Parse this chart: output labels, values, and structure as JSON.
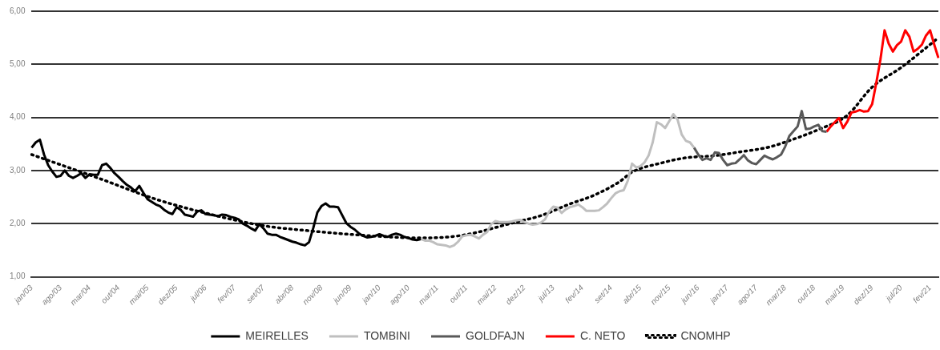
{
  "chart_data": {
    "type": "line",
    "categories": [
      "jan/03",
      null,
      null,
      null,
      null,
      null,
      null,
      "ago/03",
      null,
      null,
      null,
      null,
      null,
      null,
      "mar/04",
      null,
      null,
      null,
      null,
      null,
      null,
      "out/04",
      null,
      null,
      null,
      null,
      null,
      null,
      "mai/05",
      null,
      null,
      null,
      null,
      null,
      null,
      "dez/05",
      null,
      null,
      null,
      null,
      null,
      null,
      "jul/06",
      null,
      null,
      null,
      null,
      null,
      null,
      "fev/07",
      null,
      null,
      null,
      null,
      null,
      null,
      "set/07",
      null,
      null,
      null,
      null,
      null,
      null,
      "abr/08",
      null,
      null,
      null,
      null,
      null,
      null,
      "nov/08",
      null,
      null,
      null,
      null,
      null,
      null,
      "jun/09",
      null,
      null,
      null,
      null,
      null,
      null,
      "jan/10",
      null,
      null,
      null,
      null,
      null,
      null,
      "ago/10",
      null,
      null,
      null,
      null,
      null,
      null,
      "mar/11",
      null,
      null,
      null,
      null,
      null,
      null,
      "out/11",
      null,
      null,
      null,
      null,
      null,
      null,
      "mai/12",
      null,
      null,
      null,
      null,
      null,
      null,
      "dez/12",
      null,
      null,
      null,
      null,
      null,
      null,
      "jul/13",
      null,
      null,
      null,
      null,
      null,
      null,
      "fev/14",
      null,
      null,
      null,
      null,
      null,
      null,
      "set/14",
      null,
      null,
      null,
      null,
      null,
      null,
      "abr/15",
      null,
      null,
      null,
      null,
      null,
      null,
      "nov/15",
      null,
      null,
      null,
      null,
      null,
      null,
      "jun/16",
      null,
      null,
      null,
      null,
      null,
      null,
      "jan/17",
      null,
      null,
      null,
      null,
      null,
      null,
      "ago/17",
      null,
      null,
      null,
      null,
      null,
      null,
      "mar/18",
      null,
      null,
      null,
      null,
      null,
      null,
      "out/18",
      null,
      null,
      null,
      null,
      null,
      null,
      "mai/19",
      null,
      null,
      null,
      null,
      null,
      null,
      "dez/19",
      null,
      null,
      null,
      null,
      null,
      null,
      "jul/20",
      null,
      null,
      null,
      null,
      null,
      null,
      "fev/21",
      null,
      null
    ],
    "series": [
      {
        "name": "MEIRELLES",
        "color": "#000000",
        "values": [
          3.43,
          3.53,
          3.58,
          3.3,
          3.1,
          2.98,
          2.88,
          2.9,
          3.0,
          2.9,
          2.86,
          2.9,
          2.95,
          2.86,
          2.93,
          2.92,
          2.92,
          3.1,
          3.13,
          3.05,
          2.95,
          2.88,
          2.8,
          2.73,
          2.68,
          2.61,
          2.71,
          2.58,
          2.46,
          2.41,
          2.36,
          2.33,
          2.26,
          2.21,
          2.18,
          2.31,
          2.26,
          2.17,
          2.15,
          2.13,
          2.23,
          2.25,
          2.18,
          2.17,
          2.16,
          2.14,
          2.17,
          2.16,
          2.13,
          2.11,
          2.08,
          2.0,
          1.96,
          1.91,
          1.87,
          1.99,
          1.91,
          1.81,
          1.79,
          1.79,
          1.75,
          1.72,
          1.69,
          1.66,
          1.64,
          1.61,
          1.59,
          1.65,
          1.91,
          2.21,
          2.33,
          2.38,
          2.32,
          2.32,
          2.31,
          2.16,
          2.01,
          1.94,
          1.89,
          1.82,
          1.77,
          1.74,
          1.75,
          1.77,
          1.8,
          1.77,
          1.75,
          1.79,
          1.81,
          1.79,
          1.75,
          1.73,
          1.7,
          1.69,
          1.71,
          null,
          null,
          null,
          null,
          null,
          null,
          null,
          null,
          null,
          null,
          null,
          null,
          null,
          null,
          null,
          null,
          null,
          null,
          null,
          null,
          null,
          null,
          null,
          null,
          null,
          null,
          null,
          null,
          null,
          null,
          null,
          null,
          null,
          null,
          null,
          null,
          null,
          null,
          null,
          null,
          null,
          null,
          null,
          null,
          null,
          null,
          null,
          null,
          null,
          null,
          null,
          null,
          null,
          null,
          null,
          null,
          null,
          null,
          null,
          null,
          null,
          null,
          null,
          null,
          null,
          null,
          null,
          null,
          null,
          null,
          null,
          null,
          null,
          null,
          null,
          null,
          null,
          null,
          null,
          null,
          null,
          null,
          null,
          null,
          null,
          null,
          null,
          null,
          null,
          null,
          null,
          null,
          null,
          null,
          null,
          null,
          null,
          null,
          null,
          null,
          null,
          null,
          null,
          null,
          null,
          null,
          null,
          null,
          null,
          null,
          null,
          null,
          null,
          null,
          null,
          null,
          null,
          null,
          null,
          null,
          null,
          null,
          null,
          null,
          null
        ]
      },
      {
        "name": "TOMBINI",
        "color": "#bfbfbf",
        "values": [
          null,
          null,
          null,
          null,
          null,
          null,
          null,
          null,
          null,
          null,
          null,
          null,
          null,
          null,
          null,
          null,
          null,
          null,
          null,
          null,
          null,
          null,
          null,
          null,
          null,
          null,
          null,
          null,
          null,
          null,
          null,
          null,
          null,
          null,
          null,
          null,
          null,
          null,
          null,
          null,
          null,
          null,
          null,
          null,
          null,
          null,
          null,
          null,
          null,
          null,
          null,
          null,
          null,
          null,
          null,
          null,
          null,
          null,
          null,
          null,
          null,
          null,
          null,
          null,
          null,
          null,
          null,
          null,
          null,
          null,
          null,
          null,
          null,
          null,
          null,
          null,
          null,
          null,
          null,
          null,
          null,
          null,
          null,
          null,
          null,
          null,
          null,
          null,
          null,
          null,
          null,
          null,
          null,
          null,
          1.71,
          1.68,
          1.68,
          1.65,
          1.61,
          1.6,
          1.59,
          1.56,
          1.59,
          1.66,
          1.76,
          1.78,
          1.79,
          1.76,
          1.72,
          1.79,
          1.84,
          1.99,
          2.05,
          2.03,
          2.03,
          2.03,
          2.04,
          2.06,
          2.07,
          2.03,
          2.0,
          1.98,
          1.99,
          2.02,
          2.08,
          2.23,
          2.32,
          2.3,
          2.2,
          2.27,
          2.31,
          2.33,
          2.36,
          2.31,
          2.24,
          2.24,
          2.24,
          2.25,
          2.31,
          2.38,
          2.48,
          2.57,
          2.61,
          2.63,
          2.81,
          3.13,
          3.06,
          3.08,
          3.15,
          3.28,
          3.53,
          3.91,
          3.87,
          3.8,
          3.93,
          4.06,
          3.96,
          3.68,
          3.56,
          3.53,
          3.43,
          null,
          null,
          null,
          null,
          null,
          null,
          null,
          null,
          null,
          null,
          null,
          null,
          null,
          null,
          null,
          null,
          null,
          null,
          null,
          null,
          null,
          null,
          null,
          null,
          null,
          null,
          null,
          null,
          null,
          null,
          null,
          null,
          null,
          null,
          null,
          null,
          null,
          null,
          null,
          null,
          null,
          null,
          null,
          null,
          null,
          null,
          null,
          null,
          null,
          null,
          null,
          null,
          null,
          null,
          null,
          null,
          null,
          null,
          null
        ]
      },
      {
        "name": "GOLDFAJN",
        "color": "#595959",
        "values": [
          null,
          null,
          null,
          null,
          null,
          null,
          null,
          null,
          null,
          null,
          null,
          null,
          null,
          null,
          null,
          null,
          null,
          null,
          null,
          null,
          null,
          null,
          null,
          null,
          null,
          null,
          null,
          null,
          null,
          null,
          null,
          null,
          null,
          null,
          null,
          null,
          null,
          null,
          null,
          null,
          null,
          null,
          null,
          null,
          null,
          null,
          null,
          null,
          null,
          null,
          null,
          null,
          null,
          null,
          null,
          null,
          null,
          null,
          null,
          null,
          null,
          null,
          null,
          null,
          null,
          null,
          null,
          null,
          null,
          null,
          null,
          null,
          null,
          null,
          null,
          null,
          null,
          null,
          null,
          null,
          null,
          null,
          null,
          null,
          null,
          null,
          null,
          null,
          null,
          null,
          null,
          null,
          null,
          null,
          null,
          null,
          null,
          null,
          null,
          null,
          null,
          null,
          null,
          null,
          null,
          null,
          null,
          null,
          null,
          null,
          null,
          null,
          null,
          null,
          null,
          null,
          null,
          null,
          null,
          null,
          null,
          null,
          null,
          null,
          null,
          null,
          null,
          null,
          null,
          null,
          null,
          null,
          null,
          null,
          null,
          null,
          null,
          null,
          null,
          null,
          null,
          null,
          null,
          null,
          null,
          null,
          null,
          null,
          null,
          null,
          null,
          null,
          null,
          null,
          null,
          null,
          null,
          null,
          null,
          null,
          3.43,
          3.3,
          3.2,
          3.23,
          3.2,
          3.34,
          3.33,
          3.2,
          3.1,
          3.13,
          3.14,
          3.21,
          3.29,
          3.19,
          3.14,
          3.12,
          3.2,
          3.28,
          3.24,
          3.21,
          3.25,
          3.3,
          3.45,
          3.65,
          3.74,
          3.83,
          4.12,
          3.78,
          3.79,
          3.83,
          3.86,
          3.74,
          3.73,
          null,
          null,
          null,
          null,
          null,
          null,
          null,
          null,
          null,
          null,
          null,
          null,
          null,
          null,
          null,
          null,
          null,
          null,
          null,
          null,
          null,
          null,
          null,
          null,
          null,
          null,
          null
        ]
      },
      {
        "name": "C. NETO",
        "color": "#ff0000",
        "values": [
          null,
          null,
          null,
          null,
          null,
          null,
          null,
          null,
          null,
          null,
          null,
          null,
          null,
          null,
          null,
          null,
          null,
          null,
          null,
          null,
          null,
          null,
          null,
          null,
          null,
          null,
          null,
          null,
          null,
          null,
          null,
          null,
          null,
          null,
          null,
          null,
          null,
          null,
          null,
          null,
          null,
          null,
          null,
          null,
          null,
          null,
          null,
          null,
          null,
          null,
          null,
          null,
          null,
          null,
          null,
          null,
          null,
          null,
          null,
          null,
          null,
          null,
          null,
          null,
          null,
          null,
          null,
          null,
          null,
          null,
          null,
          null,
          null,
          null,
          null,
          null,
          null,
          null,
          null,
          null,
          null,
          null,
          null,
          null,
          null,
          null,
          null,
          null,
          null,
          null,
          null,
          null,
          null,
          null,
          null,
          null,
          null,
          null,
          null,
          null,
          null,
          null,
          null,
          null,
          null,
          null,
          null,
          null,
          null,
          null,
          null,
          null,
          null,
          null,
          null,
          null,
          null,
          null,
          null,
          null,
          null,
          null,
          null,
          null,
          null,
          null,
          null,
          null,
          null,
          null,
          null,
          null,
          null,
          null,
          null,
          null,
          null,
          null,
          null,
          null,
          null,
          null,
          null,
          null,
          null,
          null,
          null,
          null,
          null,
          null,
          null,
          null,
          null,
          null,
          null,
          null,
          null,
          null,
          null,
          null,
          null,
          null,
          null,
          null,
          null,
          null,
          null,
          null,
          null,
          null,
          null,
          null,
          null,
          null,
          null,
          null,
          null,
          null,
          null,
          null,
          null,
          null,
          null,
          null,
          null,
          null,
          null,
          null,
          null,
          null,
          null,
          null,
          3.73,
          3.83,
          3.91,
          3.99,
          3.8,
          3.92,
          4.09,
          4.11,
          4.14,
          4.11,
          4.12,
          4.25,
          4.65,
          5.09,
          5.64,
          5.39,
          5.24,
          5.36,
          5.43,
          5.64,
          5.52,
          5.24,
          5.29,
          5.37,
          5.54,
          5.64,
          5.37,
          5.12
        ]
      },
      {
        "name": "CNOMHP",
        "color": "#000000",
        "line_style": "dotted",
        "values": [
          3.3,
          null,
          null,
          null,
          null,
          null,
          null,
          null,
          null,
          null,
          null,
          null,
          null,
          null,
          null,
          null,
          2.86,
          null,
          null,
          null,
          null,
          null,
          null,
          null,
          null,
          null,
          null,
          null,
          null,
          null,
          2.46,
          null,
          null,
          null,
          null,
          null,
          null,
          null,
          null,
          null,
          null,
          null,
          null,
          null,
          2.16,
          null,
          null,
          null,
          null,
          null,
          null,
          null,
          null,
          null,
          null,
          null,
          1.96,
          null,
          null,
          null,
          null,
          null,
          null,
          null,
          null,
          1.88,
          null,
          null,
          null,
          null,
          null,
          null,
          null,
          null,
          null,
          null,
          null,
          null,
          null,
          null,
          null,
          null,
          null,
          null,
          1.76,
          null,
          null,
          null,
          null,
          null,
          null,
          null,
          null,
          null,
          1.73,
          null,
          null,
          null,
          null,
          null,
          null,
          null,
          null,
          null,
          1.78,
          null,
          null,
          null,
          null,
          null,
          null,
          null,
          null,
          null,
          null,
          null,
          null,
          2.03,
          null,
          null,
          null,
          null,
          null,
          2.15,
          null,
          null,
          null,
          null,
          null,
          null,
          2.37,
          null,
          null,
          null,
          null,
          null,
          2.54,
          null,
          null,
          null,
          null,
          null,
          2.79,
          null,
          null,
          2.97,
          null,
          null,
          null,
          null,
          null,
          null,
          3.14,
          null,
          null,
          null,
          null,
          null,
          3.24,
          null,
          null,
          null,
          null,
          null,
          null,
          3.28,
          null,
          null,
          null,
          null,
          null,
          3.35,
          null,
          null,
          null,
          null,
          null,
          null,
          3.44,
          null,
          null,
          null,
          null,
          null,
          3.59,
          null,
          null,
          null,
          null,
          null,
          3.77,
          null,
          null,
          null,
          null,
          null,
          null,
          4.04,
          null,
          null,
          null,
          null,
          null,
          4.57,
          null,
          null,
          null,
          null,
          null,
          null,
          4.94,
          null,
          null,
          null,
          null,
          null,
          null,
          null,
          null,
          5.5
        ]
      }
    ],
    "ylim": [
      1,
      6
    ],
    "yticks": [
      {
        "value": 1,
        "label": "1,00"
      },
      {
        "value": 2,
        "label": "2,00"
      },
      {
        "value": 3,
        "label": "3,00"
      },
      {
        "value": 4,
        "label": "4,00"
      },
      {
        "value": 5,
        "label": "5,00"
      },
      {
        "value": 6,
        "label": "6,00"
      }
    ],
    "grid": "y",
    "legend": "bottom",
    "marker": "none",
    "line_style": "solid"
  }
}
